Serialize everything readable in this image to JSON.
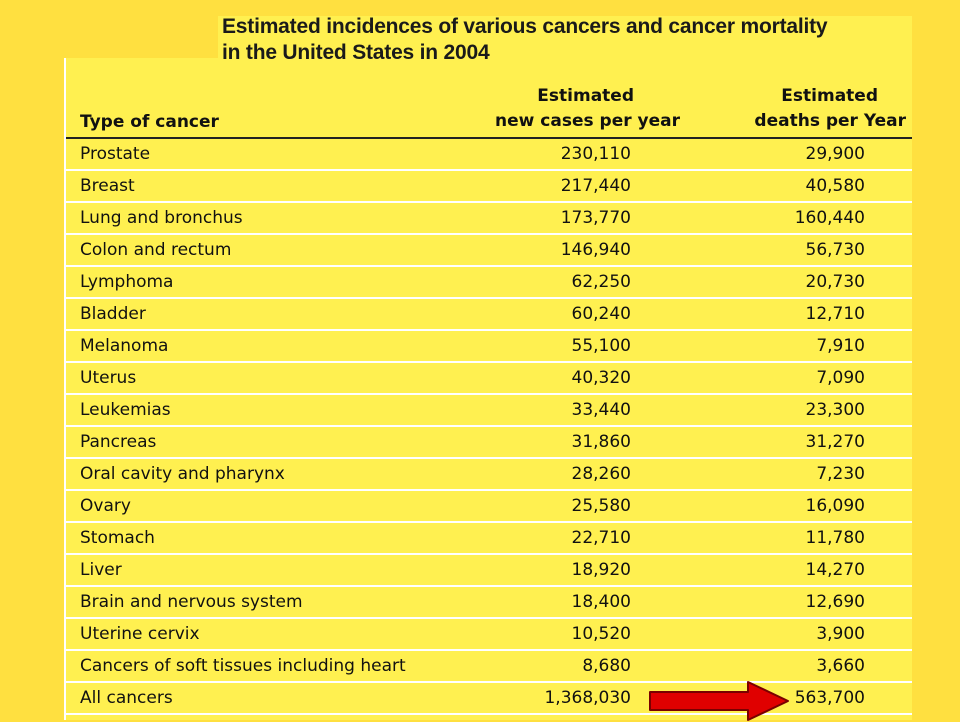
{
  "title": {
    "line1": "Estimated incidences of various cancers and cancer mortality",
    "line2": "in the United States in 2004"
  },
  "headers": {
    "type": "Type of cancer",
    "new_line1": "Estimated",
    "new_line2": "new cases per year",
    "deaths_line1": "Estimated",
    "deaths_line2": "deaths per Year"
  },
  "rows": [
    {
      "type": "Prostate",
      "new": "230,110",
      "deaths": "29,900"
    },
    {
      "type": "Breast",
      "new": "217,440",
      "deaths": "40,580"
    },
    {
      "type": "Lung and bronchus",
      "new": "173,770",
      "deaths": "160,440"
    },
    {
      "type": "Colon and rectum",
      "new": "146,940",
      "deaths": "56,730"
    },
    {
      "type": "Lymphoma",
      "new": "62,250",
      "deaths": "20,730"
    },
    {
      "type": "Bladder",
      "new": "60,240",
      "deaths": "12,710"
    },
    {
      "type": "Melanoma",
      "new": "55,100",
      "deaths": "7,910"
    },
    {
      "type": "Uterus",
      "new": "40,320",
      "deaths": "7,090"
    },
    {
      "type": "Leukemias",
      "new": "33,440",
      "deaths": "23,300"
    },
    {
      "type": "Pancreas",
      "new": "31,860",
      "deaths": "31,270"
    },
    {
      "type": "Oral cavity and pharynx",
      "new": "28,260",
      "deaths": "7,230"
    },
    {
      "type": "Ovary",
      "new": "25,580",
      "deaths": "16,090"
    },
    {
      "type": "Stomach",
      "new": "22,710",
      "deaths": "11,780"
    },
    {
      "type": "Liver",
      "new": "18,920",
      "deaths": "14,270"
    },
    {
      "type": "Brain and nervous system",
      "new": "18,400",
      "deaths": "12,690"
    },
    {
      "type": "Uterine cervix",
      "new": "10,520",
      "deaths": "3,900"
    },
    {
      "type": "Cancers of soft tissues including heart",
      "new": "8,680",
      "deaths": "3,660"
    },
    {
      "type": "All cancers",
      "new": "1,368,030",
      "deaths": "563,700"
    }
  ],
  "colors": {
    "background": "#ffe040",
    "panel": "#fff050",
    "arrow": "#e00000"
  },
  "arrow_icon": "red-right-arrow-icon"
}
